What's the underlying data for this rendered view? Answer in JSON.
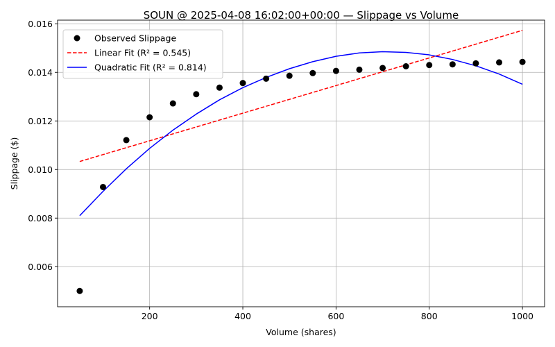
{
  "chart_data": {
    "type": "scatter",
    "title": "SOUN @ 2025-04-08 16:02:00+00:00 — Slippage vs Volume",
    "xlabel": "Volume (shares)",
    "ylabel": "Slippage ($)",
    "xlim": [
      2.5,
      1047.5
    ],
    "ylim": [
      0.00435,
      0.01615
    ],
    "x_ticks": [
      200,
      400,
      600,
      800,
      1000
    ],
    "y_ticks": [
      0.006,
      0.008,
      0.01,
      0.012,
      0.014,
      0.016
    ],
    "x_tick_labels": [
      "200",
      "400",
      "600",
      "800",
      "1000"
    ],
    "y_tick_labels": [
      "0.006",
      "0.008",
      "0.010",
      "0.012",
      "0.014",
      "0.016"
    ],
    "grid": true,
    "legend_position": "upper-left",
    "series": [
      {
        "name": "Observed Slippage",
        "kind": "scatter",
        "color": "#000000",
        "x": [
          50,
          100,
          150,
          200,
          250,
          300,
          350,
          400,
          450,
          500,
          550,
          600,
          650,
          700,
          750,
          800,
          850,
          900,
          950,
          1000
        ],
        "y": [
          0.005,
          0.00928,
          0.01121,
          0.01215,
          0.01272,
          0.0131,
          0.01337,
          0.01356,
          0.01374,
          0.01386,
          0.01397,
          0.01406,
          0.01411,
          0.01418,
          0.01425,
          0.0143,
          0.01433,
          0.01437,
          0.01441,
          0.01443
        ]
      },
      {
        "name": "Linear Fit (R² = 0.545)",
        "kind": "line",
        "style": "dashed",
        "color": "#ff0000",
        "x": [
          50,
          1000
        ],
        "y": [
          0.01033,
          0.01573
        ]
      },
      {
        "name": "Quadratic Fit (R² = 0.814)",
        "kind": "line",
        "style": "solid",
        "color": "#0000ff",
        "x": [
          50,
          100,
          150,
          200,
          250,
          300,
          350,
          400,
          450,
          500,
          550,
          600,
          650,
          700,
          750,
          800,
          850,
          900,
          950,
          1000
        ],
        "y": [
          0.0081,
          0.0091,
          0.01003,
          0.01087,
          0.01162,
          0.01228,
          0.01287,
          0.01337,
          0.01379,
          0.01415,
          0.01444,
          0.01466,
          0.0148,
          0.01485,
          0.01482,
          0.01472,
          0.01453,
          0.01427,
          0.01393,
          0.01351
        ]
      }
    ]
  }
}
